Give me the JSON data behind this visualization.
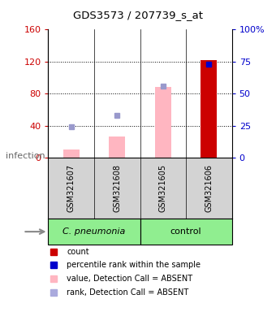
{
  "title": "GDS3573 / 207739_s_at",
  "samples": [
    "GSM321607",
    "GSM321608",
    "GSM321605",
    "GSM321606"
  ],
  "left_ylim": [
    0,
    160
  ],
  "right_ylim": [
    0,
    100
  ],
  "left_yticks": [
    0,
    40,
    80,
    120,
    160
  ],
  "right_yticks": [
    0,
    25,
    50,
    75,
    100
  ],
  "left_yticklabels": [
    "0",
    "40",
    "80",
    "120",
    "160"
  ],
  "right_yticklabels": [
    "0",
    "25",
    "50",
    "75",
    "100%"
  ],
  "left_tick_color": "#cc0000",
  "right_tick_color": "#0000cc",
  "value_absent": [
    10,
    27,
    88,
    null
  ],
  "rank_absent": [
    24,
    33,
    56,
    null
  ],
  "value_present": [
    null,
    null,
    null,
    122
  ],
  "rank_present": [
    null,
    null,
    null,
    73
  ],
  "bar_width": 0.35,
  "pink_color": "#FFB6C1",
  "dark_red_color": "#CC0000",
  "blue_sq_absent": "#9999CC",
  "blue_sq_present": "#0000CC",
  "legend_items": [
    {
      "color": "#CC0000",
      "label": "count"
    },
    {
      "color": "#0000CC",
      "label": "percentile rank within the sample"
    },
    {
      "color": "#FFB6C1",
      "label": "value, Detection Call = ABSENT"
    },
    {
      "color": "#AAAADD",
      "label": "rank, Detection Call = ABSENT"
    }
  ],
  "bg_sample_color": "#D3D3D3",
  "group_green": "#90EE90",
  "group_separator_idx": 2
}
